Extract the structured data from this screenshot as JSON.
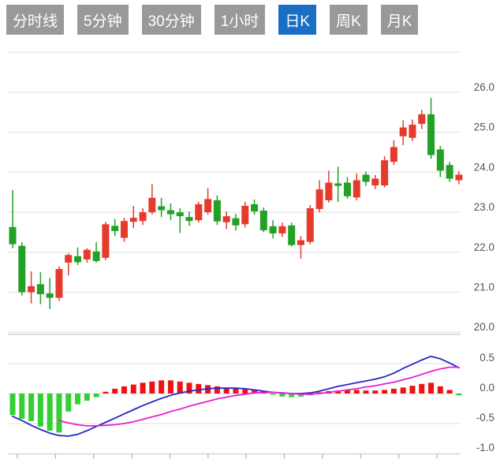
{
  "toolbar": {
    "buttons": [
      {
        "label": "分时线",
        "active": false
      },
      {
        "label": "5分钟",
        "active": false
      },
      {
        "label": "30分钟",
        "active": false
      },
      {
        "label": "1小时",
        "active": false
      },
      {
        "label": "日K",
        "active": true
      },
      {
        "label": "周K",
        "active": false
      },
      {
        "label": "月K",
        "active": false
      }
    ],
    "active_color": "#1a6fc4",
    "inactive_color": "#999999",
    "text_color": "#ffffff"
  },
  "chart_data": {
    "type": "candlestick+macd",
    "title": "",
    "legend_position": "none",
    "grid": true,
    "price_axis": {
      "position": "right",
      "tick_labels": [
        "26.0",
        "25.0",
        "24.0",
        "23.0",
        "22.0",
        "21.0",
        "20.0"
      ],
      "tick_values": [
        26.0,
        25.0,
        24.0,
        23.0,
        22.0,
        21.0,
        20.0
      ],
      "gridline_values": [
        27.0,
        26.0,
        25.0,
        24.0,
        23.0,
        22.0,
        21.0,
        20.0
      ],
      "range": [
        19.96,
        27.04
      ]
    },
    "macd_axis": {
      "position": "right",
      "tick_labels": [
        "0.5",
        "0.0",
        "-0.5",
        "-1.0"
      ],
      "tick_values": [
        0.5,
        0.0,
        -0.5,
        -1.0
      ],
      "gridline_values": [
        0.5,
        0.0,
        -0.5
      ],
      "range": [
        -1.05,
        0.75
      ]
    },
    "x_axis": {
      "tick_labels_visible": false,
      "tick_count": 12
    },
    "colors": {
      "candle_up": "#e53b2c",
      "candle_down": "#21a126",
      "bar_up": "#ee1212",
      "bar_down": "#33cf33",
      "dif_line": "#2626c9",
      "dea_line": "#e81fd4",
      "gridline": "#e5e5e5",
      "axis_line": "#cfcfcf",
      "tick_mark": "#aab2bf",
      "axis_label": "#555555"
    },
    "candles_ohlc": [
      [
        22.63,
        23.55,
        22.1,
        22.2
      ],
      [
        22.16,
        22.25,
        20.92,
        21.0
      ],
      [
        21.0,
        21.52,
        20.72,
        21.15
      ],
      [
        21.2,
        21.5,
        20.7,
        20.95
      ],
      [
        20.97,
        21.35,
        20.58,
        20.86
      ],
      [
        20.86,
        21.65,
        20.78,
        21.58
      ],
      [
        21.74,
        21.97,
        21.42,
        21.93
      ],
      [
        21.9,
        22.12,
        21.68,
        21.75
      ],
      [
        21.82,
        22.1,
        21.74,
        22.06
      ],
      [
        22.02,
        22.25,
        21.74,
        21.78
      ],
      [
        21.86,
        22.76,
        21.8,
        22.7
      ],
      [
        22.66,
        22.83,
        22.4,
        22.53
      ],
      [
        22.36,
        22.86,
        22.26,
        22.78
      ],
      [
        22.76,
        23.16,
        22.6,
        22.86
      ],
      [
        22.78,
        23.1,
        22.68,
        23.0
      ],
      [
        23.0,
        23.7,
        22.94,
        23.36
      ],
      [
        23.15,
        23.36,
        22.88,
        23.05
      ],
      [
        23.05,
        23.22,
        22.8,
        22.95
      ],
      [
        23.0,
        23.1,
        22.48,
        22.9
      ],
      [
        22.88,
        23.02,
        22.66,
        22.78
      ],
      [
        22.8,
        23.26,
        22.74,
        23.2
      ],
      [
        23.0,
        23.6,
        22.94,
        23.33
      ],
      [
        23.3,
        23.42,
        22.68,
        22.77
      ],
      [
        22.75,
        23.02,
        22.58,
        22.9
      ],
      [
        22.85,
        22.96,
        22.54,
        22.67
      ],
      [
        22.7,
        23.26,
        22.62,
        23.16
      ],
      [
        23.2,
        23.32,
        22.94,
        23.02
      ],
      [
        23.04,
        23.12,
        22.5,
        22.55
      ],
      [
        22.65,
        22.8,
        22.34,
        22.47
      ],
      [
        22.47,
        22.74,
        22.38,
        22.65
      ],
      [
        22.67,
        22.74,
        22.14,
        22.18
      ],
      [
        22.18,
        22.4,
        21.84,
        22.3
      ],
      [
        22.26,
        23.18,
        22.2,
        23.1
      ],
      [
        23.08,
        23.8,
        23.0,
        23.57
      ],
      [
        23.3,
        24.04,
        23.24,
        23.74
      ],
      [
        23.72,
        24.14,
        23.26,
        23.66
      ],
      [
        23.74,
        23.88,
        23.34,
        23.4
      ],
      [
        23.37,
        23.97,
        23.3,
        23.8
      ],
      [
        23.94,
        24.02,
        23.66,
        23.76
      ],
      [
        23.67,
        23.93,
        23.58,
        23.84
      ],
      [
        23.67,
        24.4,
        23.62,
        24.3
      ],
      [
        24.26,
        24.8,
        24.18,
        24.63
      ],
      [
        24.9,
        25.3,
        24.68,
        25.12
      ],
      [
        24.86,
        25.32,
        24.78,
        25.19
      ],
      [
        25.21,
        25.56,
        25.08,
        25.45
      ],
      [
        25.45,
        25.86,
        24.34,
        24.43
      ],
      [
        24.57,
        24.66,
        23.88,
        24.04
      ],
      [
        24.18,
        24.26,
        23.76,
        23.84
      ],
      [
        23.8,
        24.02,
        23.7,
        23.94
      ]
    ],
    "macd": {
      "histogram": [
        -0.36,
        -0.42,
        -0.46,
        -0.55,
        -0.62,
        -0.65,
        -0.3,
        -0.18,
        -0.12,
        -0.06,
        0.03,
        0.08,
        0.12,
        0.15,
        0.18,
        0.2,
        0.22,
        0.22,
        0.2,
        0.18,
        0.16,
        0.14,
        0.12,
        0.1,
        0.09,
        0.07,
        0.05,
        0.04,
        -0.02,
        -0.05,
        -0.06,
        -0.05,
        -0.03,
        0.02,
        0.04,
        0.05,
        0.06,
        0.06,
        0.05,
        0.05,
        0.06,
        0.08,
        0.1,
        0.13,
        0.16,
        0.18,
        0.12,
        0.06,
        -0.03
      ],
      "dif": [
        -0.38,
        -0.45,
        -0.53,
        -0.6,
        -0.66,
        -0.7,
        -0.71,
        -0.68,
        -0.62,
        -0.55,
        -0.48,
        -0.41,
        -0.34,
        -0.27,
        -0.2,
        -0.14,
        -0.08,
        -0.03,
        0.01,
        0.04,
        0.06,
        0.08,
        0.09,
        0.09,
        0.09,
        0.08,
        0.06,
        0.04,
        0.02,
        0.01,
        0.0,
        0.0,
        0.01,
        0.04,
        0.08,
        0.12,
        0.15,
        0.18,
        0.21,
        0.24,
        0.28,
        0.34,
        0.42,
        0.49,
        0.56,
        0.62,
        0.58,
        0.51,
        0.43
      ],
      "dea": [
        null,
        null,
        null,
        null,
        null,
        -0.45,
        -0.49,
        -0.52,
        -0.54,
        -0.54,
        -0.53,
        -0.52,
        -0.5,
        -0.47,
        -0.43,
        -0.39,
        -0.35,
        -0.3,
        -0.26,
        -0.21,
        -0.17,
        -0.13,
        -0.09,
        -0.06,
        -0.03,
        -0.01,
        0.01,
        0.02,
        0.02,
        0.01,
        0.0,
        -0.01,
        -0.01,
        0.0,
        0.02,
        0.04,
        0.06,
        0.08,
        0.11,
        0.13,
        0.16,
        0.19,
        0.23,
        0.27,
        0.32,
        0.37,
        0.41,
        0.44,
        0.44
      ]
    }
  }
}
